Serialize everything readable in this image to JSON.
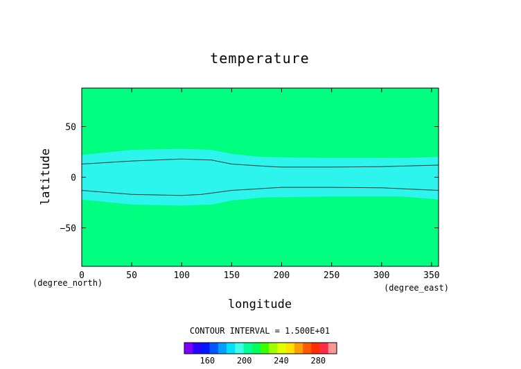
{
  "chart_data": {
    "type": "heatmap",
    "title": "temperature",
    "xlabel": "longitude",
    "ylabel": "latitude",
    "x_unit": "(degree_east)",
    "y_unit": "(degree_north)",
    "xlim": [
      0,
      357
    ],
    "ylim": [
      -88,
      88
    ],
    "x_ticks": [
      0,
      50,
      100,
      150,
      200,
      250,
      300,
      350
    ],
    "y_ticks": [
      50,
      0,
      -50
    ],
    "y_tick_labels": [
      "50",
      "0",
      "−50"
    ],
    "contour_interval_text": "CONTOUR INTERVAL = 1.500E+01",
    "background_color": "#00ff80",
    "band": {
      "color": "#2ef4ee",
      "upper_edge": [
        [
          0,
          22
        ],
        [
          50,
          27
        ],
        [
          100,
          28
        ],
        [
          130,
          27
        ],
        [
          150,
          23
        ],
        [
          180,
          20
        ],
        [
          250,
          19
        ],
        [
          320,
          19
        ],
        [
          357,
          20
        ]
      ],
      "lower_edge": [
        [
          0,
          -22
        ],
        [
          50,
          -27
        ],
        [
          100,
          -28
        ],
        [
          130,
          -27
        ],
        [
          150,
          -23
        ],
        [
          180,
          -20
        ],
        [
          250,
          -19
        ],
        [
          320,
          -19
        ],
        [
          357,
          -22
        ]
      ]
    },
    "contours": [
      {
        "name": "north",
        "points": [
          [
            0,
            13
          ],
          [
            50,
            16
          ],
          [
            100,
            18
          ],
          [
            130,
            17
          ],
          [
            150,
            13
          ],
          [
            180,
            11
          ],
          [
            200,
            10
          ],
          [
            250,
            10
          ],
          [
            300,
            10.5
          ],
          [
            357,
            12
          ]
        ]
      },
      {
        "name": "south",
        "points": [
          [
            0,
            -13
          ],
          [
            50,
            -17
          ],
          [
            100,
            -18
          ],
          [
            120,
            -17
          ],
          [
            150,
            -13
          ],
          [
            200,
            -10
          ],
          [
            250,
            -10
          ],
          [
            300,
            -10.5
          ],
          [
            357,
            -13
          ]
        ]
      }
    ],
    "colorbar": {
      "colors": [
        "#7b00ff",
        "#2a00ff",
        "#0016ff",
        "#005aff",
        "#00a0ff",
        "#00e1ff",
        "#3cffe6",
        "#00ff96",
        "#00ff5a",
        "#3cff00",
        "#a0ff00",
        "#e1ff00",
        "#ffe100",
        "#ffa000",
        "#ff5a00",
        "#ff2d00",
        "#ff2d46",
        "#ff9696"
      ],
      "tick_labels": [
        "160",
        "200",
        "240",
        "280"
      ],
      "tick_values": [
        160,
        200,
        240,
        280
      ],
      "vmin": 135,
      "vmax": 300
    }
  }
}
